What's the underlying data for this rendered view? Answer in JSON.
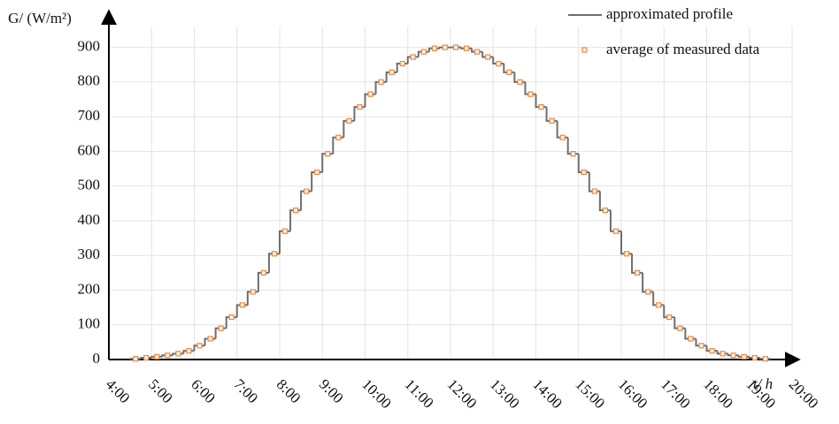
{
  "chart_data": {
    "type": "step",
    "y_label": "G/ (W/m²)",
    "x_label": "t/ h",
    "x": [
      4.625,
      4.875,
      5.125,
      5.375,
      5.625,
      5.875,
      6.125,
      6.375,
      6.625,
      6.875,
      7.125,
      7.375,
      7.625,
      7.875,
      8.125,
      8.375,
      8.625,
      8.875,
      9.125,
      9.375,
      9.625,
      9.875,
      10.125,
      10.375,
      10.625,
      10.875,
      11.125,
      11.375,
      11.625,
      11.875,
      12.125,
      12.375,
      12.625,
      12.875,
      13.125,
      13.375,
      13.625,
      13.875,
      14.125,
      14.375,
      14.625,
      14.875,
      15.125,
      15.375,
      15.625,
      15.875,
      16.125,
      16.375,
      16.625,
      16.875,
      17.125,
      17.375,
      17.625,
      17.875,
      18.125,
      18.375,
      18.625,
      18.875,
      19.125,
      19.375
    ],
    "series": [
      {
        "name": "approximated profile",
        "color": "#6e6e6e",
        "values": [
          2,
          5,
          8,
          12,
          17,
          25,
          40,
          60,
          90,
          122,
          157,
          195,
          250,
          305,
          370,
          430,
          485,
          540,
          593,
          640,
          688,
          728,
          765,
          800,
          828,
          853,
          872,
          887,
          897,
          900,
          900,
          897,
          887,
          872,
          853,
          828,
          800,
          765,
          728,
          688,
          640,
          593,
          540,
          485,
          430,
          370,
          305,
          250,
          195,
          157,
          122,
          90,
          60,
          40,
          25,
          17,
          12,
          8,
          5,
          2
        ]
      },
      {
        "name": "average of measured data",
        "color": "#f0883a",
        "values": [
          2,
          5,
          8,
          12,
          17,
          25,
          40,
          60,
          90,
          122,
          157,
          195,
          250,
          305,
          370,
          430,
          485,
          540,
          593,
          640,
          688,
          728,
          765,
          800,
          828,
          853,
          872,
          887,
          897,
          900,
          900,
          897,
          887,
          872,
          853,
          828,
          800,
          765,
          728,
          688,
          640,
          593,
          540,
          485,
          430,
          370,
          305,
          250,
          195,
          157,
          122,
          90,
          60,
          40,
          25,
          17,
          12,
          8,
          5,
          2
        ]
      }
    ],
    "xlim": [
      4,
      20
    ],
    "ylim": [
      0,
      960
    ],
    "xticks": [
      {
        "value": 4,
        "label": "4:00"
      },
      {
        "value": 5,
        "label": "5:00"
      },
      {
        "value": 6,
        "label": "6:00"
      },
      {
        "value": 7,
        "label": "7:00"
      },
      {
        "value": 8,
        "label": "8:00"
      },
      {
        "value": 9,
        "label": "9:00"
      },
      {
        "value": 10,
        "label": "10:00"
      },
      {
        "value": 11,
        "label": "11:00"
      },
      {
        "value": 12,
        "label": "12:00"
      },
      {
        "value": 13,
        "label": "13:00"
      },
      {
        "value": 14,
        "label": "14:00"
      },
      {
        "value": 15,
        "label": "15:00"
      },
      {
        "value": 16,
        "label": "16:00"
      },
      {
        "value": 17,
        "label": "17:00"
      },
      {
        "value": 18,
        "label": "18:00"
      },
      {
        "value": 19,
        "label": "19:00"
      },
      {
        "value": 20,
        "label": "20:00"
      }
    ],
    "yticks": [
      0,
      100,
      200,
      300,
      400,
      500,
      600,
      700,
      800,
      900
    ],
    "grid": true,
    "legend": "top-right"
  }
}
